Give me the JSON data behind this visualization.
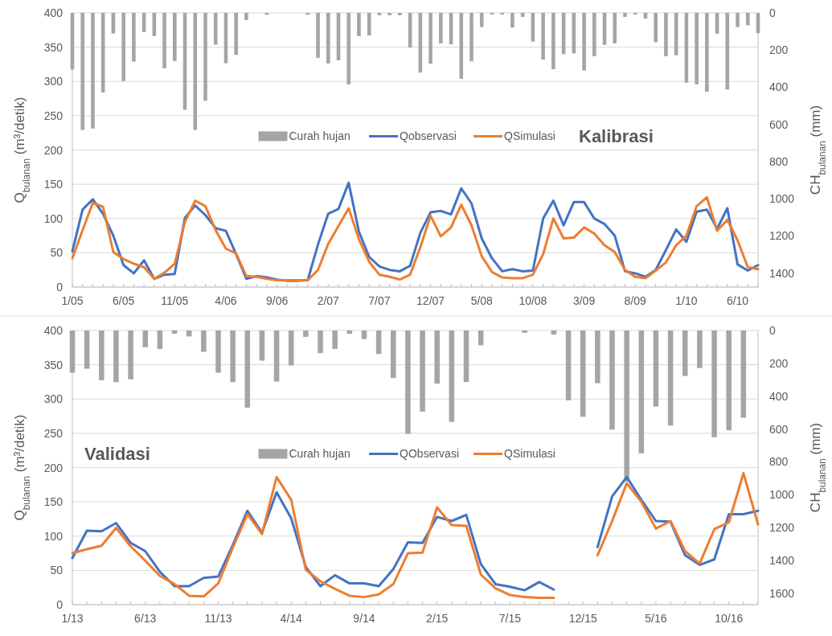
{
  "chart_data": [
    {
      "type": "line",
      "title": "Kalibrasi",
      "ylabel": "Q$_{bulanan}$ (m³/detik)",
      "y2label": "CH$_{bulanan}$ (mm)",
      "categories": [
        "1/05",
        null,
        null,
        null,
        null,
        "6/05",
        null,
        null,
        null,
        null,
        "11/05",
        null,
        null,
        null,
        null,
        "4/06",
        null,
        null,
        null,
        null,
        "9/06",
        null,
        null,
        null,
        null,
        "2/07",
        null,
        null,
        null,
        null,
        "7/07",
        null,
        null,
        null,
        null,
        "12/07",
        null,
        null,
        null,
        null,
        "5/08",
        null,
        null,
        null,
        null,
        "10/08",
        null,
        null,
        null,
        null,
        "3/09",
        null,
        null,
        null,
        null,
        "8/09",
        null,
        null,
        null,
        null,
        "1/10",
        null,
        null,
        null,
        null,
        "6/10",
        null,
        null
      ],
      "series": [
        {
          "name": "Curah hujan",
          "type": "bar",
          "axis": "y2",
          "color": "#a5a5a5",
          "values": [
            305,
            630,
            622,
            428,
            111,
            367,
            262,
            104,
            125,
            298,
            259,
            522,
            630,
            473,
            171,
            271,
            226,
            39,
            0,
            10,
            0,
            0,
            0,
            10,
            242,
            272,
            255,
            385,
            125,
            121,
            13,
            13,
            13,
            187,
            321,
            273,
            164,
            169,
            355,
            261,
            76,
            9,
            9,
            79,
            22,
            154,
            251,
            303,
            222,
            218,
            310,
            233,
            172,
            164,
            22,
            9,
            31,
            158,
            233,
            228,
            375,
            385,
            424,
            112,
            412,
            76,
            67,
            109
          ]
        },
        {
          "name": "Qobservasi",
          "color": "#4472c4",
          "values": [
            52,
            113,
            128,
            107,
            75,
            32,
            20,
            39,
            12,
            18,
            19,
            101,
            119,
            105,
            86,
            82,
            48,
            12,
            16,
            14,
            11,
            9,
            9,
            10,
            62,
            107,
            114,
            152,
            81,
            44,
            30,
            25,
            23,
            31,
            79,
            109,
            111,
            106,
            144,
            122,
            71,
            42,
            23,
            26,
            23,
            24,
            100,
            126,
            90,
            124,
            124,
            100,
            92,
            75,
            23,
            20,
            15,
            25,
            54,
            84,
            66,
            110,
            113,
            85,
            115,
            33,
            24,
            32
          ]
        },
        {
          "name": "QSimulasi",
          "color": "#ed7d31",
          "values": [
            42,
            83,
            123,
            117,
            51,
            41,
            34,
            29,
            12,
            21,
            34,
            95,
            126,
            118,
            83,
            56,
            49,
            16,
            15,
            12,
            10,
            10,
            10,
            10,
            25,
            63,
            89,
            115,
            70,
            37,
            18,
            15,
            11,
            18,
            58,
            104,
            74,
            87,
            120,
            90,
            45,
            22,
            14,
            13,
            13,
            18,
            48,
            100,
            71,
            72,
            87,
            78,
            61,
            51,
            25,
            15,
            13,
            24,
            36,
            61,
            75,
            118,
            131,
            82,
            98,
            68,
            29,
            26
          ]
        }
      ],
      "ylim": [
        0,
        400
      ],
      "yticks": [
        0,
        50,
        100,
        150,
        200,
        250,
        300,
        350,
        400
      ],
      "y2lim": [
        1475,
        0
      ],
      "y2ticks": [
        0,
        200,
        400,
        600,
        800,
        1000,
        1200,
        1400
      ],
      "grid": "y",
      "legend": "center"
    },
    {
      "type": "line",
      "title": "Validasi",
      "ylabel": "Q$_{bulanan}$ (m³/detik)",
      "y2label": "CH$_{bulanan}$ (mm)",
      "categories": [
        "1/13",
        null,
        null,
        null,
        null,
        "6/13",
        null,
        null,
        null,
        null,
        "11/13",
        null,
        null,
        null,
        null,
        "4/14",
        null,
        null,
        null,
        null,
        "9/14",
        null,
        null,
        null,
        null,
        "2/15",
        null,
        null,
        null,
        null,
        "7/15",
        null,
        null,
        null,
        null,
        "12/15",
        null,
        null,
        null,
        null,
        "5/16",
        null,
        null,
        null,
        null,
        "10/16",
        null,
        null
      ],
      "series": [
        {
          "name": "Curah hujan",
          "type": "bar",
          "axis": "y2",
          "color": "#a5a5a5",
          "values": [
            257,
            233,
            303,
            315,
            298,
            102,
            113,
            20,
            36,
            130,
            257,
            315,
            470,
            184,
            311,
            213,
            39,
            138,
            113,
            20,
            52,
            143,
            290,
            630,
            494,
            324,
            557,
            314,
            90,
            0,
            0,
            14,
            0,
            25,
            426,
            526,
            321,
            604,
            920,
            749,
            463,
            579,
            277,
            229,
            650,
            608,
            531,
            0
          ]
        },
        {
          "name": "QObservasi",
          "color": "#4472c4",
          "values": [
            68,
            108,
            107,
            119,
            90,
            78,
            48,
            27,
            27,
            39,
            41,
            87,
            137,
            105,
            164,
            126,
            55,
            27,
            43,
            31,
            31,
            27,
            52,
            91,
            90,
            128,
            122,
            131,
            59,
            30,
            26,
            21,
            33,
            22,
            null,
            null,
            84,
            158,
            186,
            153,
            122,
            121,
            72,
            58,
            66,
            132,
            132,
            137
          ]
        },
        {
          "name": "QSimulasi",
          "color": "#ed7d31",
          "values": [
            75,
            81,
            86,
            112,
            85,
            64,
            42,
            30,
            13,
            12,
            31,
            83,
            132,
            103,
            186,
            153,
            51,
            34,
            23,
            13,
            11,
            15,
            30,
            75,
            76,
            142,
            116,
            115,
            44,
            24,
            14,
            11,
            10,
            10,
            null,
            null,
            72,
            122,
            177,
            150,
            111,
            122,
            78,
            60,
            110,
            120,
            192,
            117
          ]
        }
      ],
      "ylim": [
        0,
        400
      ],
      "yticks": [
        0,
        50,
        100,
        150,
        200,
        250,
        300,
        350,
        400
      ],
      "y2lim": [
        1670,
        0
      ],
      "y2ticks": [
        0,
        200,
        400,
        600,
        800,
        1000,
        1200,
        1400,
        1600
      ],
      "grid": "y",
      "legend": "center"
    }
  ]
}
